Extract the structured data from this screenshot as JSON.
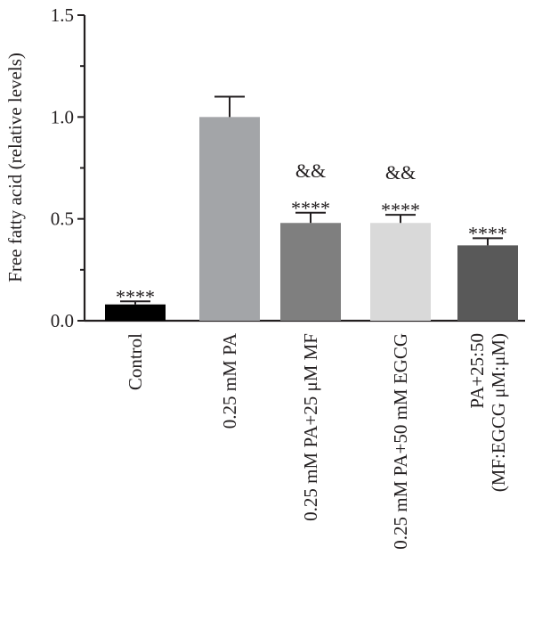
{
  "chart_data": {
    "type": "bar",
    "title": "",
    "xlabel": "",
    "ylabel": "Free fatty acid (relative levels)",
    "ylim": [
      0,
      1.5
    ],
    "yticks": [
      0.0,
      0.5,
      1.0,
      1.5
    ],
    "ytick_labels": [
      "0.0",
      "0.5",
      "1.0",
      "1.5"
    ],
    "grid": false,
    "categories": [
      [
        "Control"
      ],
      [
        "0.25 mM PA"
      ],
      [
        "0.25 mM PA+25 μM MF"
      ],
      [
        "0.25 mM PA+50 mM EGCG"
      ],
      [
        "PA+25:50",
        "(MF:EGCG μM:μM)"
      ]
    ],
    "values": [
      0.08,
      1.0,
      0.48,
      0.48,
      0.37
    ],
    "errors": [
      0.015,
      0.1,
      0.05,
      0.04,
      0.035
    ],
    "colors": [
      "#000000",
      "#a3a5a8",
      "#7f7f7f",
      "#d9d9d9",
      "#595959"
    ],
    "annotations": [
      [
        "****"
      ],
      [],
      [
        "****",
        "&&"
      ],
      [
        "****",
        "&&"
      ],
      [
        "****"
      ]
    ]
  }
}
